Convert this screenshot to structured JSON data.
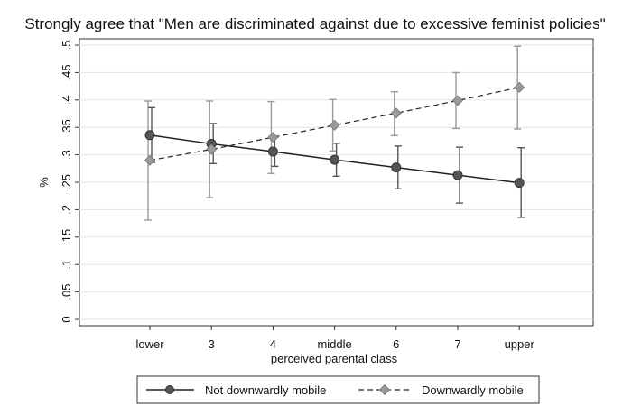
{
  "chart_data": {
    "type": "line",
    "title": "Strongly agree that \"Men are discriminated against due to excessive feminist policies\"",
    "xlabel": "perceived parental class",
    "ylabel": "%",
    "categories": [
      "lower",
      "3",
      "4",
      "middle",
      "6",
      "7",
      "upper"
    ],
    "y_ticks": [
      {
        "value": 0,
        "label": "0"
      },
      {
        "value": 0.05,
        "label": ".05"
      },
      {
        "value": 0.1,
        "label": ".1"
      },
      {
        "value": 0.15,
        "label": ".15"
      },
      {
        "value": 0.2,
        "label": ".2"
      },
      {
        "value": 0.25,
        "label": ".25"
      },
      {
        "value": 0.3,
        "label": ".3"
      },
      {
        "value": 0.35,
        "label": ".35"
      },
      {
        "value": 0.4,
        "label": ".4"
      },
      {
        "value": 0.45,
        "label": ".45"
      },
      {
        "value": 0.5,
        "label": ".5"
      }
    ],
    "ylim": [
      0,
      0.5
    ],
    "grid": "horizontal",
    "legend_position": "bottom",
    "series": [
      {
        "name": "Not downwardly mobile",
        "line_style": "solid",
        "marker": "circle",
        "color": "#555555",
        "values": [
          0.336,
          0.32,
          0.306,
          0.291,
          0.277,
          0.263,
          0.249
        ],
        "ci_low": [
          0.286,
          0.284,
          0.279,
          0.261,
          0.238,
          0.212,
          0.186
        ],
        "ci_high": [
          0.386,
          0.357,
          0.332,
          0.321,
          0.316,
          0.314,
          0.313
        ]
      },
      {
        "name": "Downwardly mobile",
        "line_style": "dashed",
        "marker": "diamond",
        "color": "#9a9a9a",
        "values": [
          0.29,
          0.31,
          0.332,
          0.354,
          0.376,
          0.399,
          0.423
        ],
        "ci_low": [
          0.181,
          0.222,
          0.266,
          0.307,
          0.335,
          0.348,
          0.347
        ],
        "ci_high": [
          0.398,
          0.398,
          0.397,
          0.401,
          0.415,
          0.45,
          0.498
        ]
      }
    ]
  }
}
